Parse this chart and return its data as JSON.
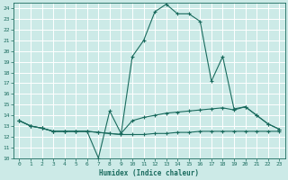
{
  "xlabel": "Humidex (Indice chaleur)",
  "xlim": [
    -0.5,
    23.5
  ],
  "ylim": [
    10,
    24.5
  ],
  "yticks": [
    10,
    11,
    12,
    13,
    14,
    15,
    16,
    17,
    18,
    19,
    20,
    21,
    22,
    23,
    24
  ],
  "xticks": [
    0,
    1,
    2,
    3,
    4,
    5,
    6,
    7,
    8,
    9,
    10,
    11,
    12,
    13,
    14,
    15,
    16,
    17,
    18,
    19,
    20,
    21,
    22,
    23
  ],
  "bg_color": "#cceae7",
  "grid_color": "#ffffff",
  "line_color": "#1a6b5e",
  "line1_x": [
    0,
    1,
    2,
    3,
    4,
    5,
    6,
    7,
    8,
    9,
    10,
    11,
    12,
    13,
    14,
    15,
    16,
    17,
    18,
    19,
    20,
    21,
    22,
    23
  ],
  "line1_y": [
    13.5,
    13.0,
    12.8,
    12.5,
    12.5,
    12.5,
    12.5,
    12.4,
    12.3,
    12.2,
    12.2,
    12.2,
    12.3,
    12.3,
    12.4,
    12.4,
    12.5,
    12.5,
    12.5,
    12.5,
    12.5,
    12.5,
    12.5,
    12.5
  ],
  "line2_x": [
    0,
    1,
    2,
    3,
    4,
    5,
    6,
    7,
    8,
    9,
    10,
    11,
    12,
    13,
    14,
    15,
    16,
    17,
    18,
    19,
    20,
    21,
    22,
    23
  ],
  "line2_y": [
    13.5,
    13.0,
    12.8,
    12.5,
    12.5,
    12.5,
    12.5,
    10.0,
    14.4,
    12.3,
    13.5,
    13.8,
    14.0,
    14.2,
    14.3,
    14.4,
    14.5,
    14.6,
    14.7,
    14.5,
    14.8,
    14.0,
    13.2,
    12.7
  ],
  "line3_x": [
    0,
    1,
    2,
    3,
    4,
    5,
    6,
    7,
    8,
    9,
    10,
    11,
    12,
    13,
    14,
    15,
    16,
    17,
    18,
    19,
    20,
    21,
    22,
    23
  ],
  "line3_y": [
    13.5,
    13.0,
    12.8,
    12.5,
    12.5,
    12.5,
    12.5,
    12.4,
    12.3,
    12.2,
    19.5,
    21.0,
    23.7,
    24.4,
    23.5,
    23.5,
    22.8,
    17.2,
    19.5,
    14.6,
    14.8,
    14.0,
    13.2,
    12.7
  ]
}
